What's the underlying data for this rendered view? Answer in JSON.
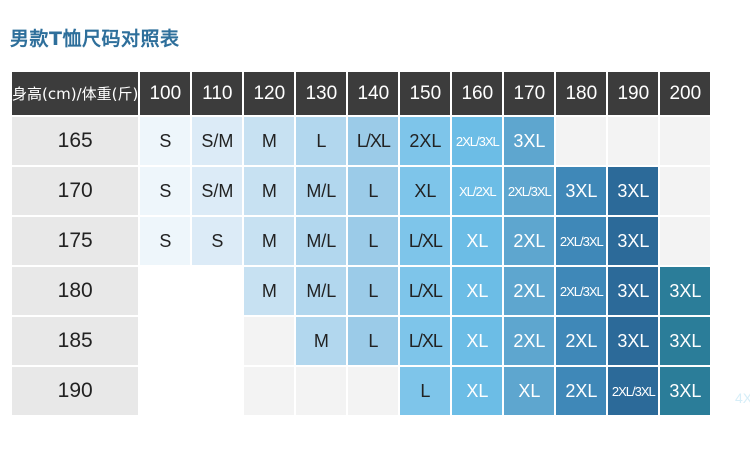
{
  "title": "男款T恤尺码对照表",
  "corner_label": "身高(cm)/体重(斤)",
  "weights": [
    "100",
    "110",
    "120",
    "130",
    "140",
    "150",
    "160",
    "170",
    "180",
    "190",
    "200"
  ],
  "rows": [
    {
      "height": "165",
      "cells": [
        "S",
        "S/M",
        "M",
        "L",
        "L/XL",
        "2XL",
        "2XL/3XL",
        "3XL",
        "",
        "",
        ""
      ]
    },
    {
      "height": "170",
      "cells": [
        "S",
        "S/M",
        "M",
        "M/L",
        "L",
        "XL",
        "XL/2XL",
        "2XL/3XL",
        "3XL",
        "3XL",
        ""
      ]
    },
    {
      "height": "175",
      "cells": [
        "S",
        "S",
        "M",
        "M/L",
        "L",
        "L/XL",
        "XL",
        "2XL",
        "2XL/3XL",
        "3XL",
        ""
      ]
    },
    {
      "height": "180",
      "cells": [
        "",
        "",
        "M",
        "M/L",
        "L",
        "L/XL",
        "XL",
        "2XL",
        "2XL/3XL",
        "3XL",
        "3XL"
      ]
    },
    {
      "height": "185",
      "cells": [
        "",
        "",
        "",
        "M",
        "L",
        "L/XL",
        "XL",
        "2XL",
        "2XL",
        "3XL",
        "3XL"
      ]
    },
    {
      "height": "190",
      "cells": [
        "",
        "",
        "",
        "",
        "",
        "L",
        "XL",
        "XL",
        "2XL",
        "2XL/3XL",
        "3XL"
      ]
    }
  ],
  "ghost_text": "4X",
  "colors": {
    "title": "#2e6f9b",
    "header_bg": "#3c3c3c",
    "row_header_bg": "#e8e8e8",
    "gradient": [
      "#eef6fb",
      "#dcebf7",
      "#c7e1f2",
      "#b2d7ee",
      "#9bcbe8",
      "#7ec5ea",
      "#6cbde6",
      "#5ea6cf",
      "#3f88b8",
      "#2c6a99",
      "#2b7d99"
    ]
  }
}
